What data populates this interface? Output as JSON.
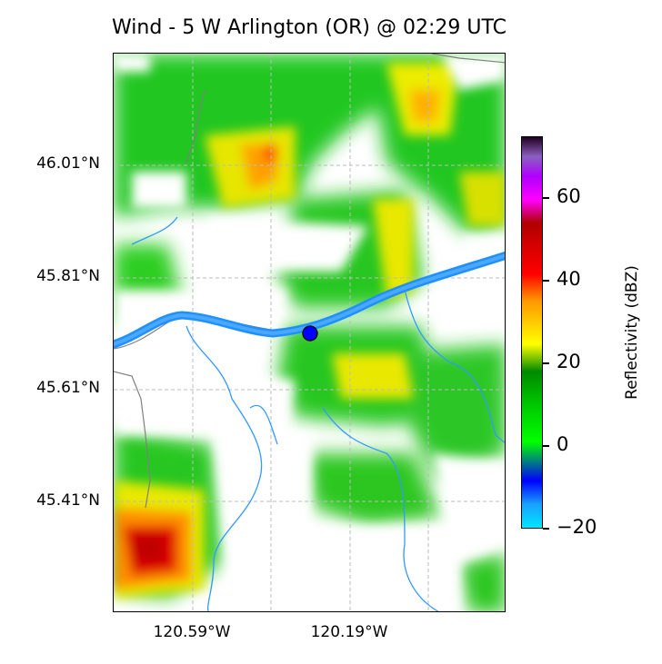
{
  "title": "Wind - 5 W Arlington (OR) @ 02:29 UTC",
  "map": {
    "lat_ticks": [
      "46.01°N",
      "45.81°N",
      "45.61°N",
      "45.41°N"
    ],
    "lon_ticks": [
      "120.59°W",
      "120.19°W"
    ],
    "site_marker": {
      "lon": -120.29,
      "lat": 45.72
    },
    "colors": {
      "river": "#1e90ff",
      "border": "#808080",
      "site": "#0000ff",
      "grid": "#bbbbbb"
    }
  },
  "colorbar": {
    "label": "Reflectivity (dBZ)",
    "min": -20,
    "max": 75,
    "ticks": [
      "−20",
      "0",
      "20",
      "40",
      "60"
    ],
    "tick_values": [
      -20,
      0,
      20,
      40,
      60
    ]
  }
}
